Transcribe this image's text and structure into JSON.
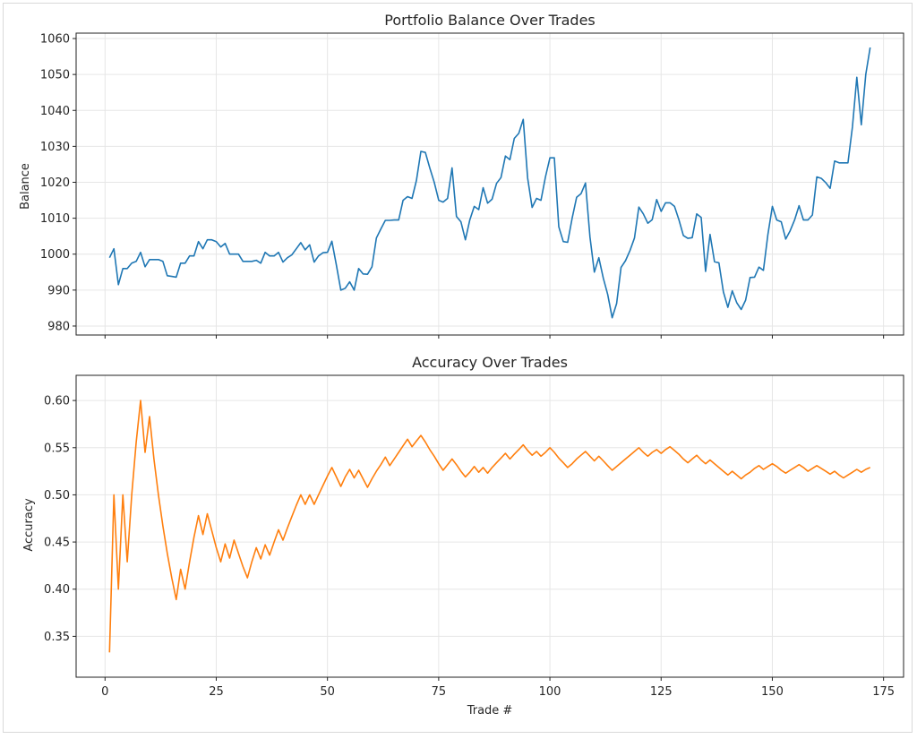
{
  "chart_data": [
    {
      "type": "line",
      "title": "Portfolio Balance Over Trades",
      "xlabel": "",
      "ylabel": "Balance",
      "xlim": [
        -6.5,
        179.5
      ],
      "ylim": [
        977.5,
        1061.5
      ],
      "yticks": [
        980,
        990,
        1000,
        1010,
        1020,
        1030,
        1040,
        1050,
        1060
      ],
      "xticks": [
        0,
        25,
        50,
        75,
        100,
        125,
        150,
        175
      ],
      "show_xtick_labels": false,
      "grid": true,
      "color": "#1f77b4",
      "series": [
        {
          "x": [
            1,
            2,
            3,
            4,
            5,
            6,
            7,
            8,
            9,
            10,
            11,
            12,
            13,
            14,
            15,
            16,
            17,
            18,
            19,
            20,
            21,
            22,
            23,
            24,
            25,
            26,
            27,
            28,
            29,
            30,
            31,
            32,
            33,
            34,
            35,
            36,
            37,
            38,
            39,
            40,
            41,
            42,
            43,
            44,
            45,
            46,
            47,
            48,
            49,
            50,
            51,
            52,
            53,
            54,
            55,
            56,
            57,
            58,
            59,
            60,
            61,
            62,
            63,
            64,
            65,
            66,
            67,
            68,
            69,
            70,
            71,
            72,
            73,
            74,
            75,
            76,
            77,
            78,
            79,
            80,
            81,
            82,
            83,
            84,
            85,
            86,
            87,
            88,
            89,
            90,
            91,
            92,
            93,
            94,
            95,
            96,
            97,
            98,
            99,
            100,
            101,
            102,
            103,
            104,
            105,
            106,
            107,
            108,
            109,
            110,
            111,
            112,
            113,
            114,
            115,
            116,
            117,
            118,
            119,
            120,
            121,
            122,
            123,
            124,
            125,
            126,
            127,
            128,
            129,
            130,
            131,
            132,
            133,
            134,
            135,
            136,
            137,
            138,
            139,
            140,
            141,
            142,
            143,
            144,
            145,
            146,
            147,
            148,
            149,
            150,
            151,
            152,
            153,
            154,
            155,
            156,
            157,
            158,
            159,
            160,
            161,
            162,
            163,
            164,
            165,
            166,
            167,
            168,
            169,
            170,
            171,
            172
          ],
          "values": [
            999,
            1001.5,
            991.5,
            996,
            996,
            997.5,
            998,
            1000.5,
            996.5,
            998.5,
            998.5,
            998.5,
            998,
            994,
            993.8,
            993.6,
            997.5,
            997.5,
            999.5,
            999.5,
            1003.5,
            1001.5,
            1004,
            1004,
            1003.5,
            1002,
            1003,
            1000,
            1000,
            1000,
            998,
            998,
            998,
            998.3,
            997.5,
            1000.5,
            999.5,
            999.5,
            1000.5,
            997.8,
            999,
            999.8,
            1001.5,
            1003.2,
            1001.2,
            1002.6,
            997.8,
            999.5,
            1000.4,
            1000.5,
            1003.6,
            997,
            990,
            990.5,
            992.3,
            990,
            996,
            994.5,
            994.4,
            996.5,
            1004.5,
            1007,
            1009.4,
            1009.4,
            1009.5,
            1009.5,
            1015,
            1016,
            1015.5,
            1020.5,
            1028.6,
            1028.3,
            1024,
            1020,
            1015,
            1014.5,
            1015.5,
            1024,
            1010.5,
            1009,
            1004,
            1009.5,
            1013.3,
            1012.4,
            1018.5,
            1014.2,
            1015.3,
            1019.7,
            1021.3,
            1027.3,
            1026.3,
            1032.2,
            1033.6,
            1037.5,
            1021.2,
            1013,
            1015.5,
            1015,
            1021.5,
            1026.8,
            1026.8,
            1007.6,
            1003.5,
            1003.3,
            1010,
            1015.8,
            1016.8,
            1019.8,
            1004.8,
            995,
            999,
            993.3,
            988.8,
            982.3,
            986.3,
            996.3,
            998.2,
            1001,
            1004.5,
            1013.1,
            1011.2,
            1008.6,
            1009.6,
            1015.2,
            1011.9,
            1014.3,
            1014.3,
            1013.3,
            1009.6,
            1005.2,
            1004.4,
            1004.6,
            1011.2,
            1010.2,
            995.2,
            1005.5,
            997.9,
            997.6,
            989.5,
            985.2,
            989.8,
            986.5,
            984.6,
            987.2,
            993.5,
            993.6,
            996.4,
            995.5,
            1005.5,
            1013.3,
            1009.5,
            1009,
            1004.2,
            1006.5,
            1009.5,
            1013.5,
            1009.5,
            1009.5,
            1010.9,
            1021.5,
            1021.1,
            1019.9,
            1018.3,
            1025.9,
            1025.4,
            1025.4,
            1025.4,
            1035.4,
            1049.2,
            1036,
            1050,
            1057.5
          ]
        }
      ]
    },
    {
      "type": "line",
      "title": "Accuracy Over Trades",
      "xlabel": "Trade #",
      "ylabel": "Accuracy",
      "xlim": [
        -6.5,
        179.5
      ],
      "ylim": [
        0.3067,
        0.6267
      ],
      "yticks": [
        0.35,
        0.4,
        0.45,
        0.5,
        0.55,
        0.6
      ],
      "ytick_labels": [
        "0.35",
        "0.40",
        "0.45",
        "0.50",
        "0.55",
        "0.60"
      ],
      "xticks": [
        0,
        25,
        50,
        75,
        100,
        125,
        150,
        175
      ],
      "show_xtick_labels": true,
      "grid": true,
      "color": "#ff7f0e",
      "series": [
        {
          "x": [
            1,
            2,
            3,
            4,
            5,
            6,
            7,
            8,
            9,
            10,
            11,
            12,
            13,
            14,
            15,
            16,
            17,
            18,
            19,
            20,
            21,
            22,
            23,
            24,
            25,
            26,
            27,
            28,
            29,
            30,
            31,
            32,
            33,
            34,
            35,
            36,
            37,
            38,
            39,
            40,
            41,
            42,
            43,
            44,
            45,
            46,
            47,
            48,
            49,
            50,
            51,
            52,
            53,
            54,
            55,
            56,
            57,
            58,
            59,
            60,
            61,
            62,
            63,
            64,
            65,
            66,
            67,
            68,
            69,
            70,
            71,
            72,
            73,
            74,
            75,
            76,
            77,
            78,
            79,
            80,
            81,
            82,
            83,
            84,
            85,
            86,
            87,
            88,
            89,
            90,
            91,
            92,
            93,
            94,
            95,
            96,
            97,
            98,
            99,
            100,
            101,
            102,
            103,
            104,
            105,
            106,
            107,
            108,
            109,
            110,
            111,
            112,
            113,
            114,
            115,
            116,
            117,
            118,
            119,
            120,
            121,
            122,
            123,
            124,
            125,
            126,
            127,
            128,
            129,
            130,
            131,
            132,
            133,
            134,
            135,
            136,
            137,
            138,
            139,
            140,
            141,
            142,
            143,
            144,
            145,
            146,
            147,
            148,
            149,
            150,
            151,
            152,
            153,
            154,
            155,
            156,
            157,
            158,
            159,
            160,
            161,
            162,
            163,
            164,
            165,
            166,
            167,
            168,
            169,
            170,
            171,
            172
          ],
          "values": [
            0.333,
            0.5,
            0.4,
            0.5,
            0.429,
            0.5,
            0.556,
            0.6,
            0.545,
            0.583,
            0.538,
            0.5,
            0.467,
            0.438,
            0.412,
            0.389,
            0.421,
            0.4,
            0.429,
            0.455,
            0.478,
            0.458,
            0.48,
            0.462,
            0.444,
            0.429,
            0.448,
            0.433,
            0.452,
            0.438,
            0.424,
            0.412,
            0.429,
            0.444,
            0.432,
            0.447,
            0.436,
            0.45,
            0.463,
            0.452,
            0.465,
            0.477,
            0.489,
            0.5,
            0.49,
            0.5,
            0.49,
            0.5,
            0.51,
            0.52,
            0.529,
            0.519,
            0.509,
            0.519,
            0.527,
            0.518,
            0.526,
            0.517,
            0.508,
            0.517,
            0.525,
            0.532,
            0.54,
            0.531,
            0.538,
            0.545,
            0.552,
            0.559,
            0.551,
            0.557,
            0.563,
            0.556,
            0.548,
            0.541,
            0.533,
            0.526,
            0.532,
            0.538,
            0.532,
            0.525,
            0.519,
            0.524,
            0.53,
            0.524,
            0.529,
            0.523,
            0.529,
            0.534,
            0.539,
            0.544,
            0.538,
            0.543,
            0.548,
            0.553,
            0.547,
            0.542,
            0.546,
            0.541,
            0.545,
            0.55,
            0.545,
            0.539,
            0.534,
            0.529,
            0.533,
            0.538,
            0.542,
            0.546,
            0.541,
            0.536,
            0.541,
            0.536,
            0.531,
            0.526,
            0.53,
            0.534,
            0.538,
            0.542,
            0.546,
            0.55,
            0.545,
            0.541,
            0.545,
            0.548,
            0.544,
            0.548,
            0.551,
            0.547,
            0.543,
            0.538,
            0.534,
            0.538,
            0.542,
            0.537,
            0.533,
            0.537,
            0.533,
            0.529,
            0.525,
            0.521,
            0.525,
            0.521,
            0.517,
            0.521,
            0.524,
            0.528,
            0.531,
            0.527,
            0.53,
            0.533,
            0.53,
            0.526,
            0.523,
            0.526,
            0.529,
            0.532,
            0.529,
            0.525,
            0.528,
            0.531,
            0.528,
            0.525,
            0.522,
            0.525,
            0.521,
            0.518,
            0.521,
            0.524,
            0.527,
            0.524,
            0.527,
            0.529
          ]
        }
      ]
    }
  ]
}
